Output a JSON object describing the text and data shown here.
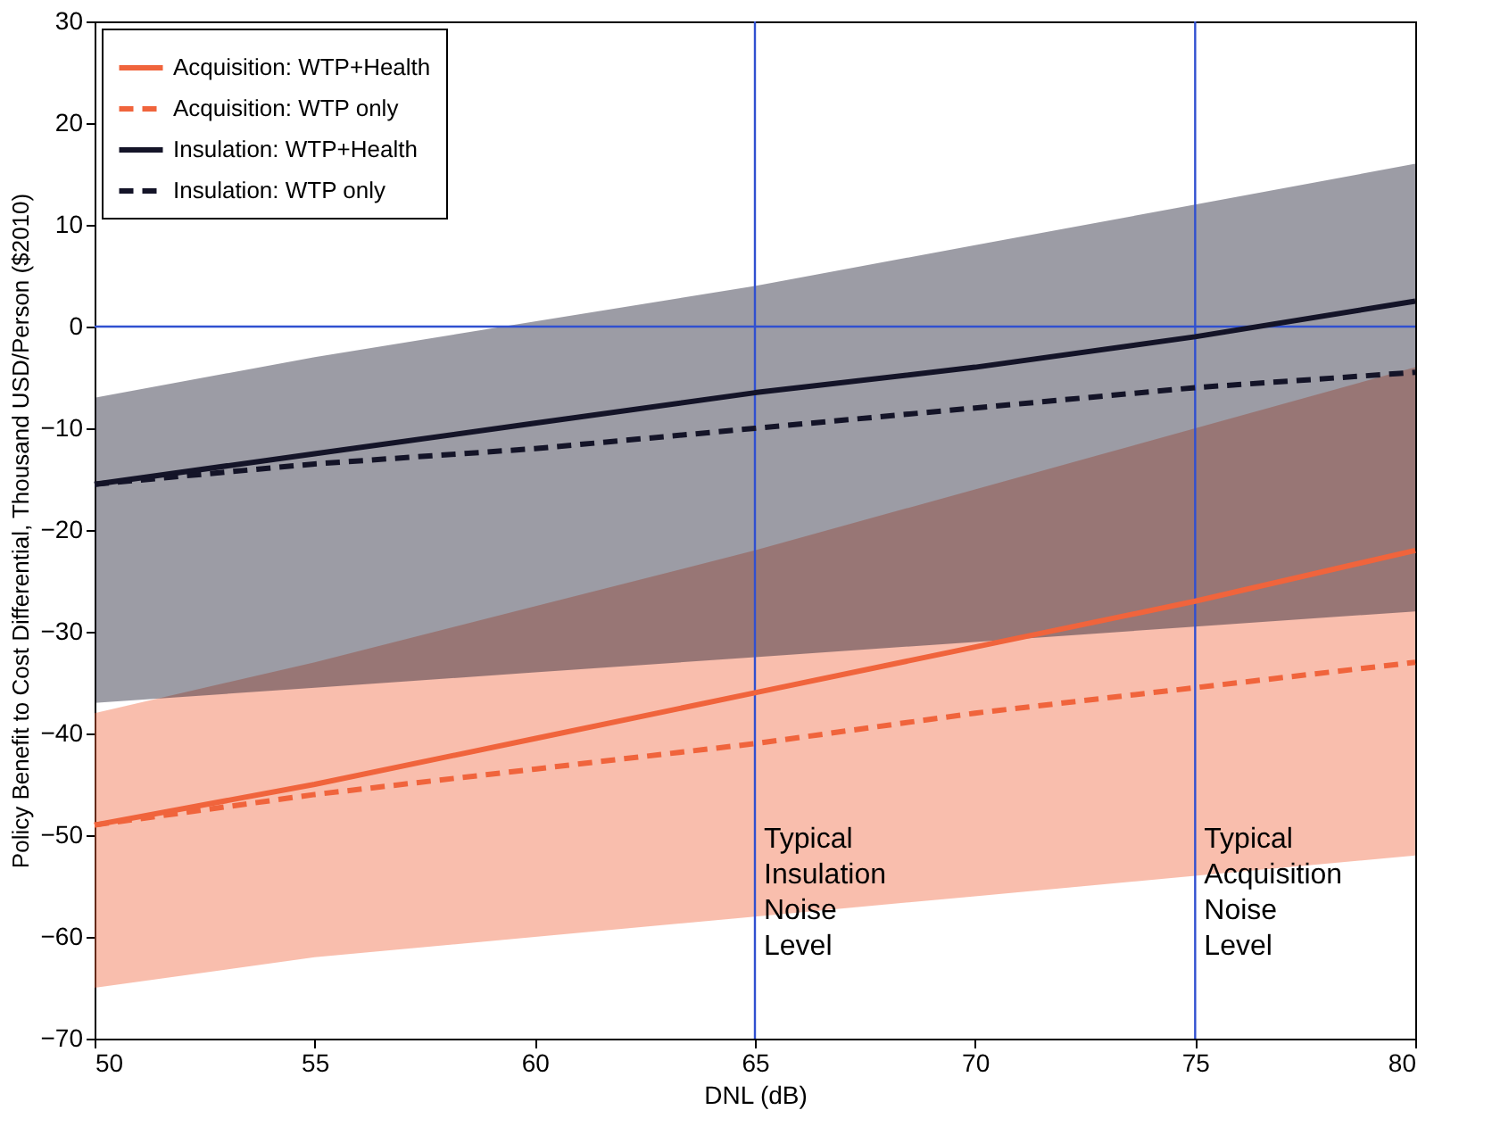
{
  "chart_data": {
    "type": "line",
    "xlabel": "DNL (dB)",
    "ylabel": "Policy Benefit to Cost Differential, Thousand USD/Person ($2010)",
    "x": [
      50,
      55,
      60,
      65,
      70,
      75,
      80
    ],
    "xlim": [
      50,
      80
    ],
    "ylim": [
      -70,
      30
    ],
    "xticks": [
      50,
      55,
      60,
      65,
      70,
      75,
      80
    ],
    "yticks": [
      -70,
      -60,
      -50,
      -40,
      -30,
      -20,
      -10,
      0,
      10,
      20,
      30
    ],
    "legend": "top left",
    "grid": false,
    "series": [
      {
        "name": "Acquisition: WTP+Health",
        "color": "#f0643c",
        "line_style": "solid",
        "values": [
          -49,
          -45,
          -40.5,
          -36,
          -31.5,
          -27,
          -22
        ],
        "lower": [
          -65,
          -62,
          -60,
          -58,
          -56,
          -54,
          -52
        ],
        "upper": [
          -38,
          -33,
          -27.5,
          -22,
          -16,
          -10,
          -4
        ]
      },
      {
        "name": "Acquisition: WTP only",
        "color": "#f0643c",
        "line_style": "dashed",
        "values": [
          -49,
          -46,
          -43.5,
          -41,
          -38,
          -35.5,
          -33
        ]
      },
      {
        "name": "Insulation: WTP+Health",
        "color": "#141428",
        "line_style": "solid",
        "values": [
          -15.5,
          -12.5,
          -9.5,
          -6.5,
          -4,
          -1,
          2.5
        ],
        "lower": [
          -37,
          -35.5,
          -34,
          -32.5,
          -31,
          -29.5,
          -28
        ],
        "upper": [
          -7,
          -3,
          0.5,
          4,
          8,
          12,
          16
        ]
      },
      {
        "name": "Insulation: WTP only",
        "color": "#141428",
        "line_style": "dashed",
        "values": [
          -15.5,
          -13.5,
          -12,
          -10,
          -8,
          -6,
          -4.5
        ]
      }
    ],
    "ref_lines": [
      {
        "axis": "x",
        "value": 65,
        "label": "Typical Insulation Noise Level",
        "color": "#3050d0"
      },
      {
        "axis": "x",
        "value": 75,
        "label": "Typical Acquisition Noise Level",
        "color": "#3050d0"
      },
      {
        "axis": "y",
        "value": 0,
        "color": "#3050d0"
      }
    ]
  }
}
